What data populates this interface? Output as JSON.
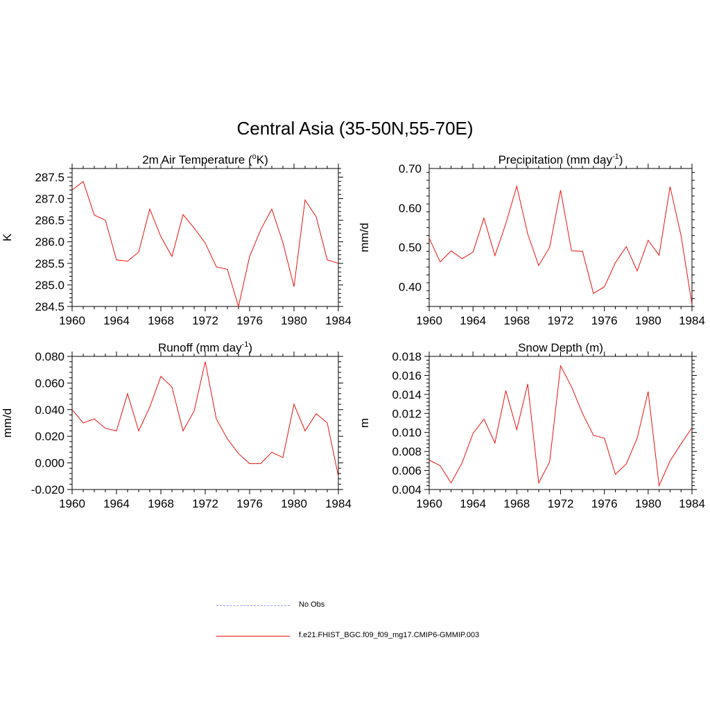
{
  "figure": {
    "title": "Central Asia (35-50N,55-70E)"
  },
  "colors": {
    "model_line": "#e8110f",
    "obs_line": "#9999ee",
    "axis": "#000000"
  },
  "legend": {
    "items": [
      {
        "label": "No Obs",
        "style": "dashed",
        "color": "#9999ee"
      },
      {
        "label": "f.e21.FHIST_BGC.f09_f09_mg17.CMIP6-GMMIP.003",
        "style": "solid",
        "color": "#e8110f"
      }
    ]
  },
  "chart_data": [
    {
      "type": "line",
      "title": "2m Air Temperature (°K)",
      "title_parts": {
        "before": "2m Air Temperature (",
        "sup": "o",
        "after": "K)"
      },
      "ylabel": "K",
      "xlabel": "",
      "xlim": [
        1960,
        1984
      ],
      "ylim": [
        284.5,
        287.7
      ],
      "xticks": [
        1960,
        1964,
        1968,
        1972,
        1976,
        1980,
        1984
      ],
      "yticks": [
        284.5,
        285.0,
        285.5,
        286.0,
        286.5,
        287.0,
        287.5
      ],
      "ytick_labels": [
        "284.5",
        "285.0",
        "285.5",
        "286.0",
        "286.5",
        "287.0",
        "287.5"
      ],
      "x": [
        1960,
        1961,
        1962,
        1963,
        1964,
        1965,
        1966,
        1967,
        1968,
        1969,
        1970,
        1971,
        1972,
        1973,
        1974,
        1975,
        1976,
        1977,
        1978,
        1979,
        1980,
        1981,
        1982,
        1983,
        1984
      ],
      "series": [
        {
          "values": [
            287.2,
            287.4,
            286.62,
            286.5,
            285.58,
            285.55,
            285.76,
            286.76,
            286.12,
            285.66,
            286.63,
            286.32,
            285.97,
            285.42,
            285.36,
            284.5,
            285.66,
            286.28,
            286.76,
            285.98,
            284.96,
            286.97,
            286.58,
            285.58,
            285.5
          ]
        }
      ]
    },
    {
      "type": "line",
      "title": "Precipitation (mm day-1)",
      "title_parts": {
        "before": "Precipitation (mm day",
        "sup": "-1",
        "after": ")"
      },
      "ylabel": "mm/d",
      "xlabel": "",
      "xlim": [
        1960,
        1984
      ],
      "ylim": [
        0.35,
        0.7
      ],
      "xticks": [
        1960,
        1964,
        1968,
        1972,
        1976,
        1980,
        1984
      ],
      "yticks": [
        0.4,
        0.5,
        0.6,
        0.7
      ],
      "ytick_labels": [
        "0.40",
        "0.50",
        "0.60",
        "0.70"
      ],
      "x": [
        1960,
        1961,
        1962,
        1963,
        1964,
        1965,
        1966,
        1967,
        1968,
        1969,
        1970,
        1971,
        1972,
        1973,
        1974,
        1975,
        1976,
        1977,
        1978,
        1979,
        1980,
        1981,
        1982,
        1983,
        1984
      ],
      "series": [
        {
          "values": [
            0.523,
            0.463,
            0.491,
            0.471,
            0.488,
            0.574,
            0.479,
            0.56,
            0.655,
            0.534,
            0.454,
            0.5,
            0.645,
            0.491,
            0.49,
            0.383,
            0.4,
            0.461,
            0.502,
            0.44,
            0.518,
            0.48,
            0.654,
            0.53,
            0.355
          ]
        }
      ]
    },
    {
      "type": "line",
      "title": "Runoff (mm day-1)",
      "title_parts": {
        "before": "Runoff (mm day",
        "sup": "-1",
        "after": ")"
      },
      "ylabel": "mm/d",
      "xlabel": "",
      "xlim": [
        1960,
        1984
      ],
      "ylim": [
        -0.02,
        0.08
      ],
      "xticks": [
        1960,
        1964,
        1968,
        1972,
        1976,
        1980,
        1984
      ],
      "yticks": [
        -0.02,
        0.0,
        0.02,
        0.04,
        0.06,
        0.08
      ],
      "ytick_labels": [
        "-0.020",
        "0.000",
        "0.020",
        "0.040",
        "0.060",
        "0.080"
      ],
      "x": [
        1960,
        1961,
        1962,
        1963,
        1964,
        1965,
        1966,
        1967,
        1968,
        1969,
        1970,
        1971,
        1972,
        1973,
        1974,
        1975,
        1976,
        1977,
        1978,
        1979,
        1980,
        1981,
        1982,
        1983,
        1984
      ],
      "series": [
        {
          "values": [
            0.04,
            0.03,
            0.033,
            0.026,
            0.024,
            0.052,
            0.024,
            0.042,
            0.065,
            0.057,
            0.024,
            0.039,
            0.076,
            0.033,
            0.018,
            0.007,
            -0.0005,
            -0.0005,
            0.008,
            0.004,
            0.044,
            0.024,
            0.037,
            0.03,
            -0.01
          ]
        }
      ]
    },
    {
      "type": "line",
      "title": "Snow Depth (m)",
      "title_parts": {
        "before": "Snow Depth (m)",
        "sup": "",
        "after": ""
      },
      "ylabel": "m",
      "xlabel": "",
      "xlim": [
        1960,
        1984
      ],
      "ylim": [
        0.004,
        0.018
      ],
      "xticks": [
        1960,
        1964,
        1968,
        1972,
        1976,
        1980,
        1984
      ],
      "yticks": [
        0.004,
        0.006,
        0.008,
        0.01,
        0.012,
        0.014,
        0.016,
        0.018
      ],
      "ytick_labels": [
        "0.004",
        "0.006",
        "0.008",
        "0.010",
        "0.012",
        "0.014",
        "0.016",
        "0.018"
      ],
      "x": [
        1960,
        1961,
        1962,
        1963,
        1964,
        1965,
        1966,
        1967,
        1968,
        1969,
        1970,
        1971,
        1972,
        1973,
        1974,
        1975,
        1976,
        1977,
        1978,
        1979,
        1980,
        1981,
        1982,
        1983,
        1984
      ],
      "series": [
        {
          "values": [
            0.0071,
            0.0065,
            0.0047,
            0.0068,
            0.0099,
            0.0114,
            0.0089,
            0.0144,
            0.0103,
            0.0151,
            0.0047,
            0.0069,
            0.017,
            0.0148,
            0.012,
            0.0097,
            0.0094,
            0.0056,
            0.0067,
            0.0094,
            0.0143,
            0.0044,
            0.007,
            0.0088,
            0.0105
          ]
        }
      ]
    }
  ]
}
